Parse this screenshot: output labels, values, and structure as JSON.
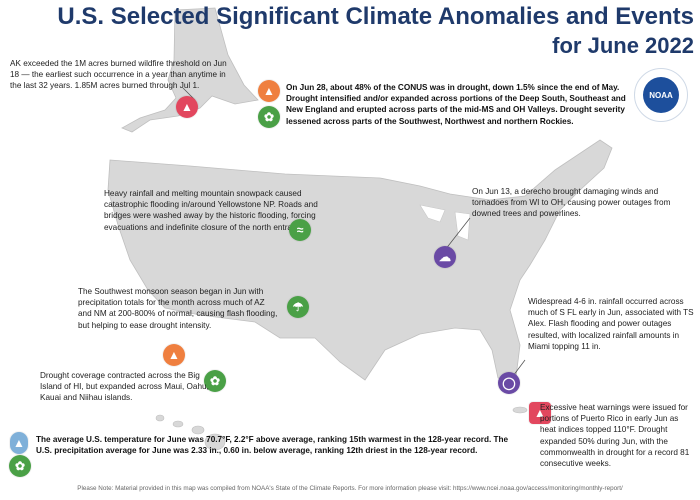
{
  "title": {
    "line1": "U.S. Selected Significant Climate Anomalies and Events",
    "line2": "for June 2022"
  },
  "logo": {
    "text": "NOAA",
    "icon": "noaa-logo"
  },
  "annotations": {
    "alaska": "AK exceeded the 1M acres burned wildfire threshold on Jun 18 — the earliest such occurrence in a year than anytime in the last 32 years. 1.85M acres burned through Jul 1.",
    "drought": "On Jun 28, about 48% of the CONUS was in drought, down 1.5% since the end of May. Drought intensified and/or expanded across portions of the Deep South, Southeast and New England and erupted across parts of the mid-MS and OH Valleys. Drought severity lessened across parts of the Southwest, Northwest and northern Rockies.",
    "yellowstone": "Heavy rainfall and melting mountain snowpack caused catastrophic flooding in/around Yellowstone NP. Roads and bridges were washed away by the historic flooding, forcing evacuations and indefinite closure of the north entrance.",
    "derecho": "On Jun 13, a derecho brought damaging winds and tornadoes from WI to OH, causing power outages from downed trees and powerlines.",
    "monsoon": "The Southwest monsoon season began in Jun with precipitation totals for the month across much of AZ and NM at 200-800% of normal, causing flash flooding, but helping to ease drought intensity.",
    "florida": "Widespread 4-6 in. rainfall occurred across much of S FL early in Jun, associated with TS Alex. Flash flooding and power outages resulted, with localized rainfall amounts in Miami topping 11 in.",
    "hawaii": "Drought coverage contracted across the Big Island of HI, but expanded across Maui, Oahu, Kauai and Niihau islands.",
    "puerto_rico": "Excessive heat warnings were issued for portions of Puerto Rico in early Jun as heat indices topped 110°F. Drought expanded 50% during Jun, with the commonwealth in drought for a record 81 consecutive weeks.",
    "national": "The average U.S. temperature for June was 70.7°F, 2.2°F above average, ranking 15th warmest in the 128-year record. The U.S. precipitation average for June was 2.33 in., 0.60 in. below average, ranking 12th driest in the 128-year record."
  },
  "footer": "Please Note: Material provided in this map was compiled from NOAA's State of the Climate Reports. For more information please visit: https://www.ncei.noaa.gov/access/monitoring/monthly-report/",
  "colors": {
    "title": "#1f3a6b",
    "land": "#d8d8d8",
    "fire": "#ef7f3f",
    "leaf": "#4aa046",
    "heat": "#e2475e",
    "storm": "#6a4aa5",
    "thermometer": "#7fb0d9"
  }
}
